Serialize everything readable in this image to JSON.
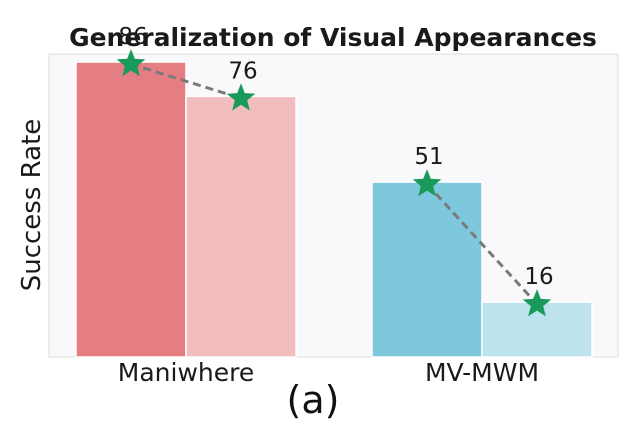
{
  "chart_data": {
    "type": "bar",
    "title": "Generalization of Visual Appearances",
    "ylabel": "Success Rate",
    "xlabel": "",
    "caption": "(a)",
    "ylim": [
      0,
      100
    ],
    "grid": false,
    "groups": [
      {
        "category": "Maniwhere",
        "values": [
          86,
          76
        ],
        "colors": [
          "#e57e82",
          "#f1bdbf"
        ]
      },
      {
        "category": "MV-MWM",
        "values": [
          51,
          16
        ],
        "colors": [
          "#7ec8dd",
          "#bde3ee"
        ]
      }
    ],
    "marker_color": "#1a9a5a",
    "line_color": "#7a7a7a",
    "plot_background": "#f9f9fb"
  }
}
